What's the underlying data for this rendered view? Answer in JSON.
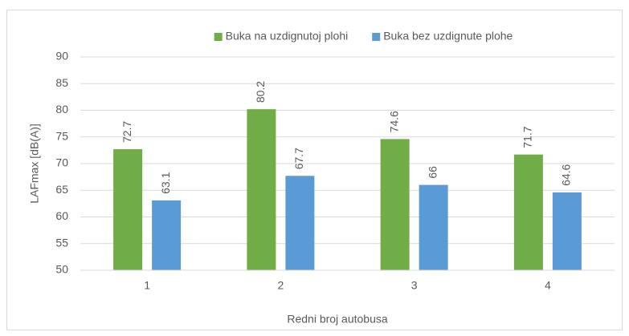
{
  "chart_data": {
    "type": "bar",
    "categories": [
      "1",
      "2",
      "3",
      "4"
    ],
    "series": [
      {
        "name": "Buka na uzdignutoj plohi",
        "color": "#70ad47",
        "values": [
          72.7,
          80.2,
          74.6,
          71.7
        ]
      },
      {
        "name": "Buka bez uzdignute plohe",
        "color": "#5b9bd5",
        "values": [
          63.1,
          67.7,
          66,
          64.6
        ]
      }
    ],
    "ylim": [
      50,
      90
    ],
    "yticks": [
      50,
      55,
      60,
      65,
      70,
      75,
      80,
      85,
      90
    ],
    "grid": true,
    "legend": "top",
    "ylabel": "LAFmax [dB(A)]",
    "xlabel": "Redni broj autobusa"
  }
}
